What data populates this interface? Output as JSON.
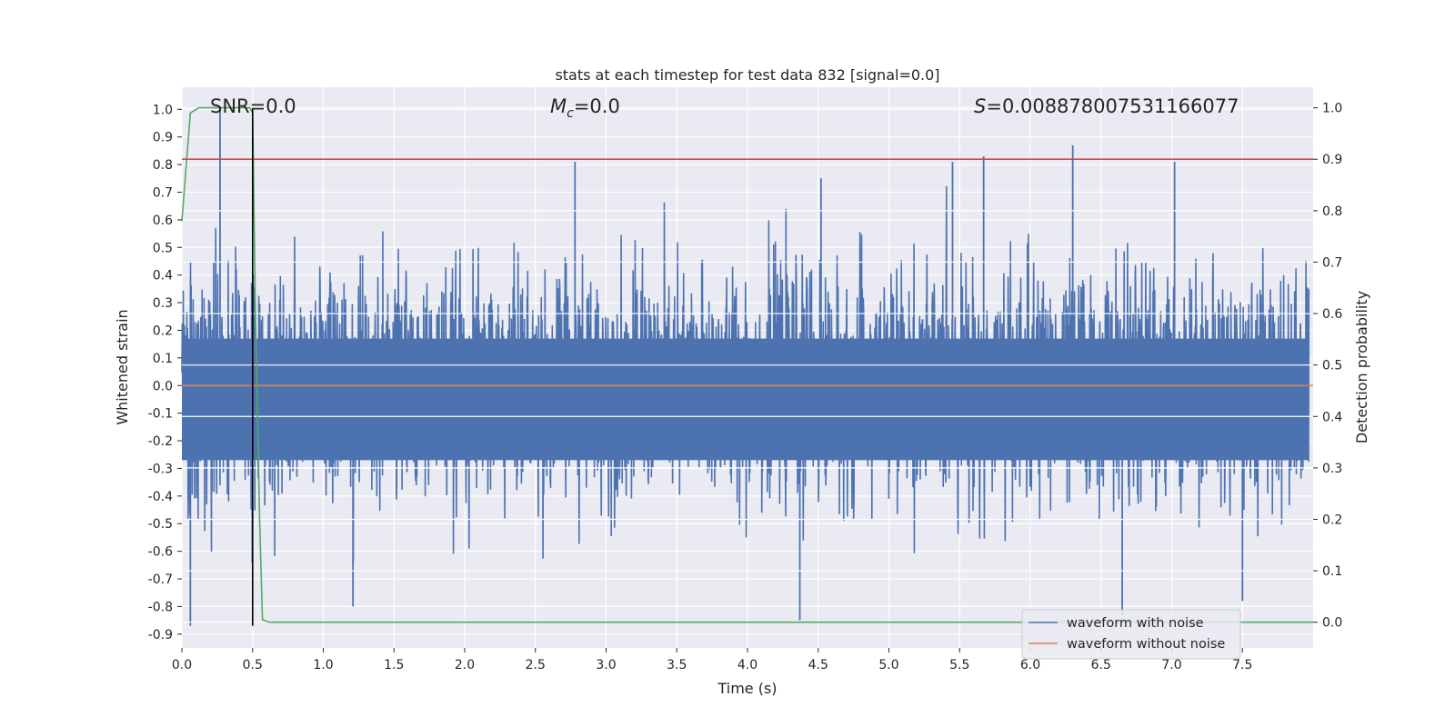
{
  "chart_data": {
    "type": "line",
    "title": "stats at each timestep for test data 832 [signal=0.0]",
    "xlabel": "Time (s)",
    "ylabel": "Whitened strain",
    "y2label": "Detection probability",
    "xlim": [
      0.0,
      8.0
    ],
    "ylim": [
      -0.95,
      1.08
    ],
    "y2lim": [
      -0.05,
      1.04
    ],
    "x_ticks": [
      "0.0",
      "0.5",
      "1.0",
      "1.5",
      "2.0",
      "2.5",
      "3.0",
      "3.5",
      "4.0",
      "4.5",
      "5.0",
      "5.5",
      "6.0",
      "6.5",
      "7.0",
      "7.5"
    ],
    "y_ticks": [
      "1.0",
      "0.9",
      "0.8",
      "0.7",
      "0.6",
      "0.5",
      "0.4",
      "0.3",
      "0.2",
      "0.1",
      "0.0",
      "-0.1",
      "-0.2",
      "-0.3",
      "-0.4",
      "-0.5",
      "-0.6",
      "-0.7",
      "-0.8",
      "-0.9"
    ],
    "y2_ticks": [
      "1.0",
      "0.9",
      "0.8",
      "0.7",
      "0.6",
      "0.5",
      "0.4",
      "0.3",
      "0.2",
      "0.1",
      "0.0"
    ],
    "grid": true,
    "legend_position": "lower-right",
    "annotations": {
      "snr": "SNR=0.0",
      "mc_symbol": "M",
      "mc_sub": "c",
      "mc_value": "=0.0",
      "s_symbol": "S",
      "s_value": "=0.008878007531166077"
    },
    "series": [
      {
        "name": "waveform with noise",
        "color": "#4c72b0",
        "axis": "left",
        "description_values": "dense noise spanning roughly -0.87 to 1.0 whitened strain",
        "notable_peaks": [
          {
            "x": 0.27,
            "y": 1.0
          },
          {
            "x": 2.78,
            "y": 0.81
          },
          {
            "x": 4.52,
            "y": 0.75
          },
          {
            "x": 5.45,
            "y": 0.81
          },
          {
            "x": 5.67,
            "y": 0.83
          },
          {
            "x": 6.3,
            "y": 0.87
          },
          {
            "x": 7.02,
            "y": 0.81
          },
          {
            "x": 0.06,
            "y": -0.87
          },
          {
            "x": 1.21,
            "y": -0.8
          },
          {
            "x": 4.37,
            "y": -0.85
          },
          {
            "x": 6.65,
            "y": -0.83
          },
          {
            "x": 7.5,
            "y": -0.78
          }
        ]
      },
      {
        "name": "waveform without noise",
        "color": "#dd8452",
        "axis": "left",
        "x": [
          0.0,
          8.0
        ],
        "y": [
          0.0,
          0.0
        ]
      },
      {
        "name": "",
        "color": "#55a868",
        "axis": "right",
        "x": [
          0.0,
          0.02,
          0.06,
          0.12,
          0.2,
          0.3,
          0.4,
          0.48,
          0.5,
          0.52,
          0.55,
          0.57,
          0.62,
          8.0
        ],
        "y": [
          0.78,
          0.85,
          0.99,
          1.0,
          1.0,
          1.0,
          1.0,
          1.0,
          0.99,
          0.6,
          0.2,
          0.005,
          0.0,
          0.0
        ]
      },
      {
        "name": "",
        "color": "#c44e52",
        "axis": "right",
        "x": [
          0.0,
          8.0
        ],
        "y": [
          0.9,
          0.9
        ]
      },
      {
        "name": "",
        "color": "#000000",
        "axis": "left",
        "x": [
          0.5,
          0.5
        ],
        "y": [
          -0.87,
          1.0
        ]
      }
    ]
  }
}
